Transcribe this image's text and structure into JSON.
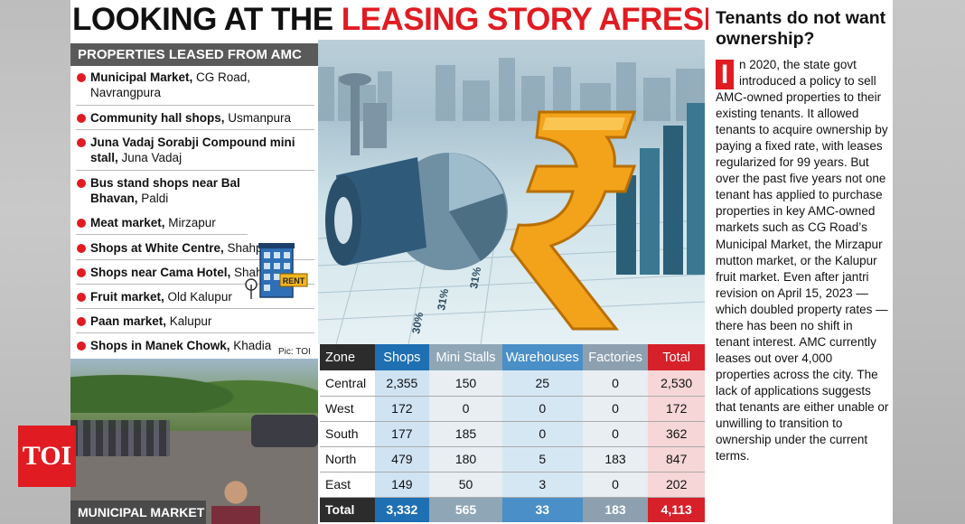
{
  "headline": {
    "part1": "LOOKING AT THE ",
    "part2": "LEASING STORY AFRESH"
  },
  "list": {
    "header": "PROPERTIES LEASED FROM AMC",
    "items": [
      {
        "name": "Municipal Market,",
        "location": " CG Road, Navrangpura"
      },
      {
        "name": "Community hall shops,",
        "location": " Usmanpura"
      },
      {
        "name": "Juna Vadaj Sorabji Compound mini stall,",
        "location": " Juna Vadaj"
      },
      {
        "name": "Bus stand shops near Bal Bhavan,",
        "location": " Paldi"
      },
      {
        "name": "Meat market,",
        "location": " Mirzapur"
      },
      {
        "name": "Shops at White Centre,",
        "location": " Shahpur"
      },
      {
        "name": "Shops near Cama Hotel,",
        "location": " Shahpur"
      },
      {
        "name": "Fruit market,",
        "location": " Old Kalupur"
      },
      {
        "name": "Paan market,",
        "location": " Kalupur"
      },
      {
        "name": "Shops in Manek Chowk,",
        "location": " Khadia"
      }
    ],
    "rent_sign": "RENT",
    "pic_credit": "Pic: TOI"
  },
  "photo_caption": "MUNICIPAL MARKET",
  "logo": "TOI",
  "art_labels": {
    "l1": "31%",
    "l2": "31%",
    "l3": "30%"
  },
  "table": {
    "headers": [
      "Zone",
      "Shops",
      "Mini Stalls",
      "Warehouses",
      "Factories",
      "Total"
    ],
    "rows": [
      [
        "Central",
        "2,355",
        "150",
        "25",
        "0",
        "2,530"
      ],
      [
        "West",
        "172",
        "0",
        "0",
        "0",
        "172"
      ],
      [
        "South",
        "177",
        "185",
        "0",
        "0",
        "362"
      ],
      [
        "North",
        "479",
        "180",
        "5",
        "183",
        "847"
      ],
      [
        "East",
        "149",
        "50",
        "3",
        "0",
        "202"
      ]
    ],
    "total": [
      "Total",
      "3,332",
      "565",
      "33",
      "183",
      "4,113"
    ]
  },
  "sidebar": {
    "title": "Tenants do not want ownership?",
    "dropcap": "I",
    "body": "n 2020, the state govt introduced a policy to sell AMC-owned properties to their existing tenants. It allowed tenants to acquire ownership by paying a fixed rate, with leases regularized for 99 years. But over the past five years not one tenant has applied to purchase properties in key AMC-owned markets such as CG Road’s Municipal Market, the Mirzapur mutton market, or the Kalupur fruit market. Even after jantri revision on April 15, 2023 — which doubled property rates — there has been no shift in tenant interest. AMC currently leases out over 4,000 properties across the city. The lack of applications suggests that tenants are either unable or unwilling to transition to ownership under the current terms."
  },
  "colors": {
    "accent_red": "#e11b22",
    "shops_blue": "#1f6fb3",
    "header_dark": "#5a5a5a"
  }
}
